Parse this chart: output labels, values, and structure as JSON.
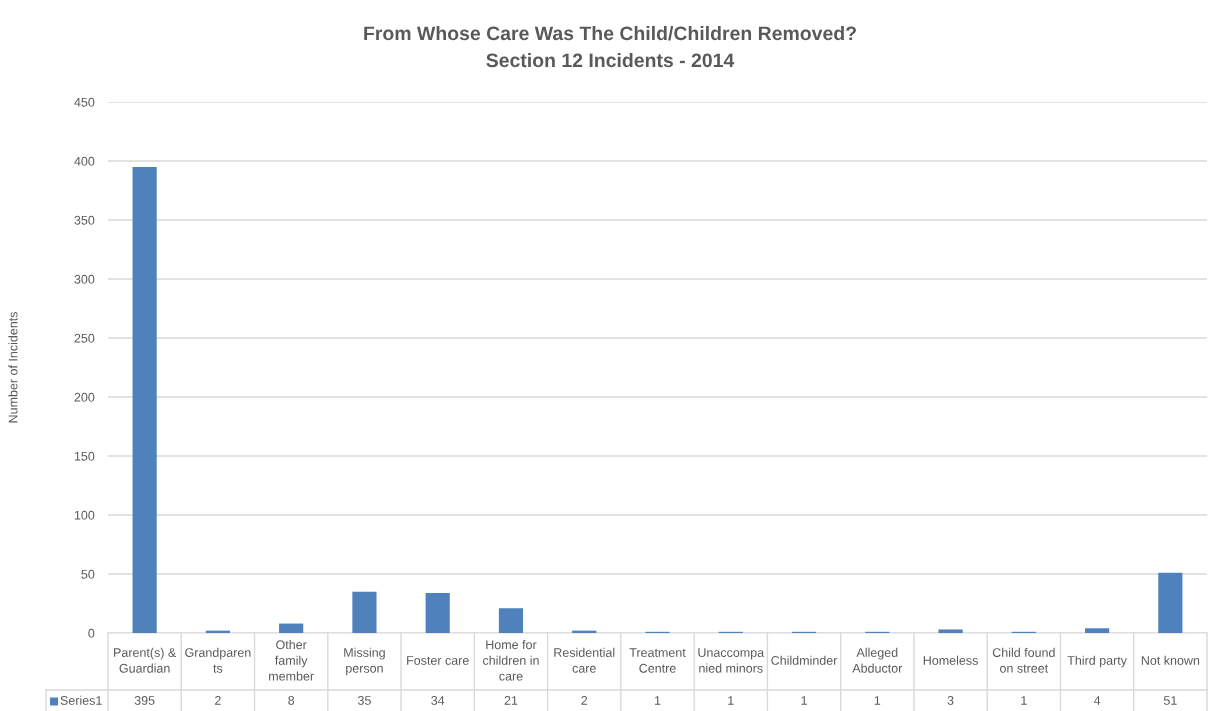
{
  "chart_data": {
    "type": "bar",
    "title": "From Whose Care Was The Child/Children Removed?",
    "subtitle": "Section 12 Incidents - 2014",
    "ylabel": "Number of Incidents",
    "categories": [
      "Parent(s) & Guardian",
      "Grandparents",
      "Other family member",
      "Missing person",
      "Foster care",
      "Home for children in care",
      "Residential care",
      "Treatment Centre",
      "Unaccompanied minors",
      "Childminder",
      "Alleged Abductor",
      "Homeless",
      "Child found on street",
      "Third party",
      "Not known"
    ],
    "series": [
      {
        "name": "Series1",
        "color": "#4f81bd",
        "values": [
          395,
          2,
          8,
          35,
          34,
          21,
          2,
          1,
          1,
          1,
          1,
          3,
          1,
          4,
          51
        ]
      }
    ],
    "ylim": [
      0,
      450
    ],
    "yticks": [
      0,
      50,
      100,
      150,
      200,
      250,
      300,
      350,
      400,
      450
    ],
    "grid": "y",
    "data_labels": true
  }
}
